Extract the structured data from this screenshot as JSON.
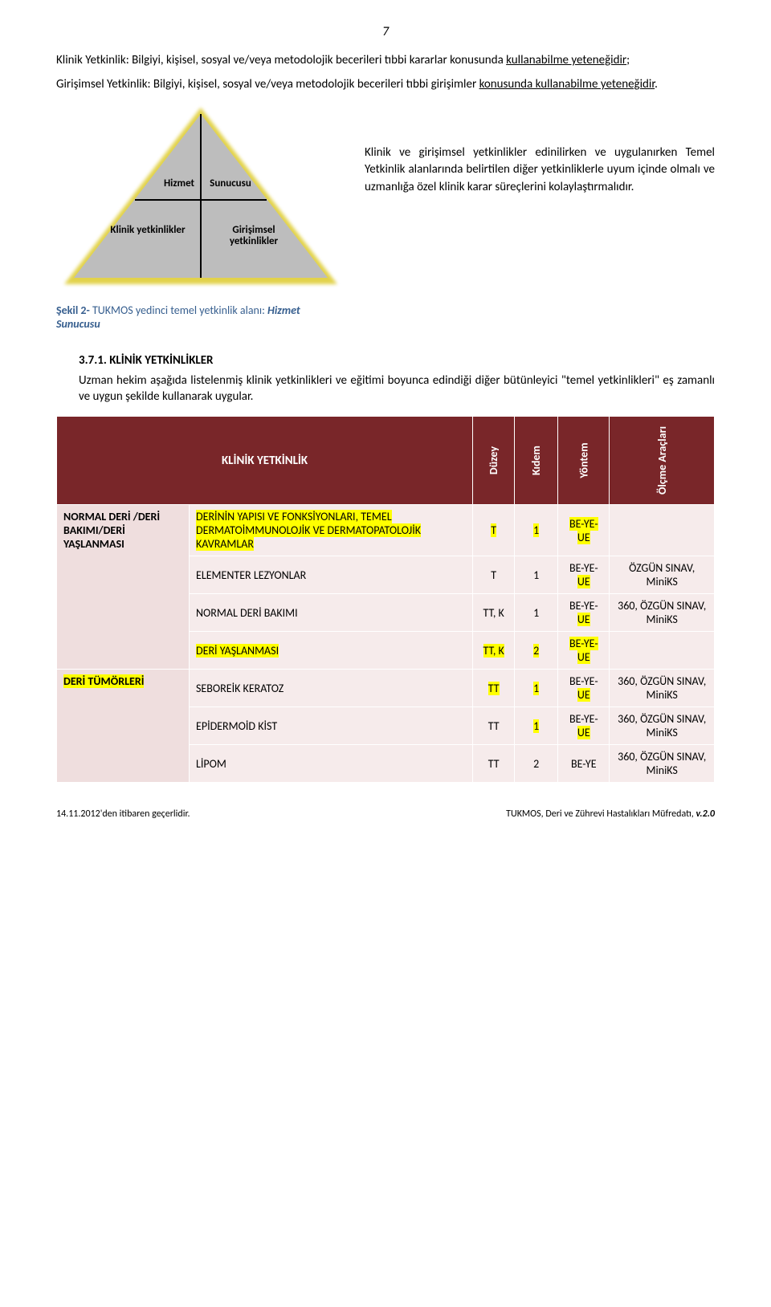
{
  "page_number": "7",
  "intro": {
    "p1_prefix": "Klinik Yetkinlik: Bilgiyi, kişisel, sosyal ve/veya metodolojik becerileri tıbbi kararlar konusunda ",
    "p1_u": "kullanabilme yeteneğidir",
    "p1_suffix": ";",
    "p2_prefix": "Girişimsel Yetkinlik: Bilgiyi, kişisel, sosyal ve/veya metodolojik becerileri tıbbi girişimler ",
    "p2_u": "konusunda kullanabilme yeteneğidir",
    "p2_suffix": "."
  },
  "triangle": {
    "top_left": "Hizmet",
    "top_right": "Sunucusu",
    "bottom_left": "Klinik yetkinlikler",
    "bottom_right": "Girişimsel yetkinlikler",
    "caption_bold": "Şekil 2-",
    "caption_plain": " TUKMOS yedinci temel yetkinlik alanı: ",
    "caption_italic": "Hizmet Sunucusu"
  },
  "fig_text": "Klinik ve girişimsel yetkinlikler edinilirken ve uygulanırken Temel Yetkinlik alanlarında belirtilen diğer yetkinliklerle uyum içinde olmalı ve uzmanlığa özel klinik karar süreçlerini kolaylaştırmalıdır.",
  "section": {
    "head": "3.7.1. KLİNİK YETKİNLİKLER",
    "para": "Uzman hekim aşağıda listelenmiş klinik yetkinlikleri ve eğitimi boyunca edindiği diğer bütünleyici \"temel yetkinlikleri\" eş zamanlı ve uygun şekilde kullanarak uygular."
  },
  "table": {
    "headers": {
      "klinik": "KLİNİK YETKİNLİK",
      "duzey": "Düzey",
      "kidem": "Kıdem",
      "yontem": "Yöntem",
      "olcme": "Ölçme Araçları"
    },
    "rows": [
      {
        "rowhead": "NORMAL DERİ /DERİ BAKIMI/DERİ YAŞLANMASI",
        "rowspan": 4,
        "desc_hl": "DERİNİN YAPISI VE FONKSİYONLARI, TEMEL DERMATOİMMUNOLOJİK VE DERMATOPATOLOJİK KAVRAMLAR",
        "desc_plain": "",
        "duzey": "T",
        "duzey_hl": true,
        "kidem": "1",
        "kidem_hl": true,
        "yontem": "BE-YE-UE",
        "yontem_hl": true,
        "olcme": ""
      },
      {
        "desc_plain": "ELEMENTER LEZYONLAR",
        "duzey": "T",
        "kidem": "1",
        "yontem_pre": "BE-YE-",
        "yontem_hl_part": "UE",
        "olcme": "ÖZGÜN SINAV, MiniKS"
      },
      {
        "desc_plain": "NORMAL DERİ BAKIMI",
        "duzey": "TT, K",
        "kidem": "1",
        "yontem_pre": "BE-YE-",
        "yontem_hl_part": "UE",
        "olcme": "360, ÖZGÜN SINAV, MiniKS"
      },
      {
        "desc_hl": "DERİ YAŞLANMASI",
        "duzey": "TT, K",
        "duzey_hl": true,
        "kidem": "2",
        "kidem_hl": true,
        "yontem": "BE-YE-UE",
        "yontem_hl": true,
        "olcme": ""
      },
      {
        "rowhead": "DERİ TÜMÖRLERİ",
        "rowhead_hl": true,
        "rowspan": 3,
        "desc_plain": "SEBOREİK KERATOZ",
        "duzey": "TT",
        "duzey_hl": true,
        "kidem": "1",
        "kidem_hl": true,
        "yontem_pre": "BE-YE-",
        "yontem_hl_part": "UE",
        "olcme": "360, ÖZGÜN SINAV, MiniKS"
      },
      {
        "desc_plain": "EPİDERMOİD KİST",
        "duzey": "TT",
        "kidem": "1",
        "kidem_hl": true,
        "yontem_post_hl": "UE",
        "yontem_pre": "BE-YE-",
        "olcme": "360, ÖZGÜN SINAV, MiniKS"
      },
      {
        "desc_plain": "LİPOM",
        "duzey": "TT",
        "kidem": "2",
        "yontem_plain": "BE-YE",
        "olcme": "360, ÖZGÜN SINAV, MiniKS"
      }
    ]
  },
  "footer": {
    "left": "14.11.2012'den itibaren geçerlidir.",
    "right_plain": "TUKMOS, Deri ve Zührevi Hastalıkları Müfredatı, ",
    "right_ver": "v.2.0"
  }
}
